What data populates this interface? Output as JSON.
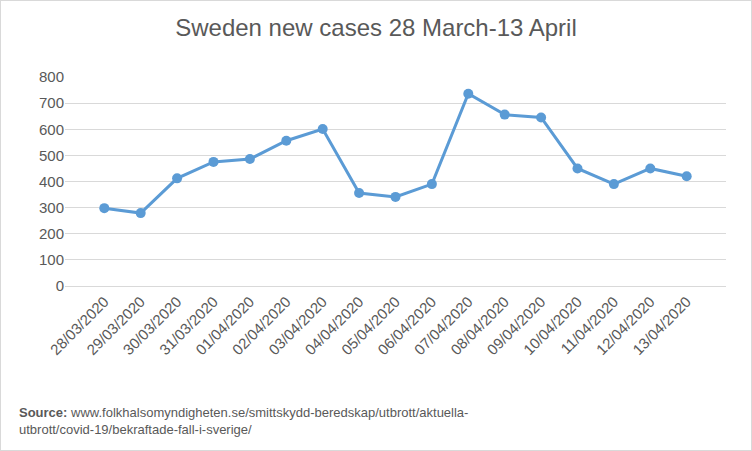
{
  "chart_data": {
    "type": "line",
    "title": "Sweden new cases 28 March-13 April",
    "categories": [
      "28/03/2020",
      "29/03/2020",
      "30/03/2020",
      "31/03/2020",
      "01/04/2020",
      "02/04/2020",
      "03/04/2020",
      "04/04/2020",
      "05/04/2020",
      "06/04/2020",
      "07/04/2020",
      "08/04/2020",
      "09/04/2020",
      "10/04/2020",
      "11/04/2020",
      "12/04/2020",
      "13/04/2020"
    ],
    "values": [
      298,
      279,
      412,
      475,
      486,
      556,
      601,
      356,
      341,
      390,
      736,
      656,
      645,
      450,
      390,
      450,
      420
    ],
    "color": "#5b9bd5",
    "marker": "circle",
    "ylim": [
      0,
      800
    ],
    "yticks": [
      0,
      100,
      200,
      300,
      400,
      500,
      600,
      700,
      800
    ],
    "grid": true,
    "annotations": [
      {
        "label": "Source:",
        "text": "www.folkhalsomyndigheten.se/smittskydd-beredskap/utbrott/aktuella-utbrott/covid-19/bekraftade-fall-i-sverige/"
      }
    ]
  }
}
